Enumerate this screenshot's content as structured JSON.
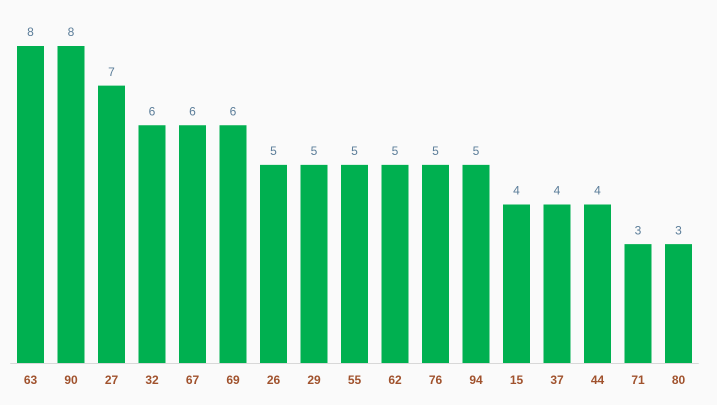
{
  "chart_data": {
    "type": "bar",
    "categories": [
      "63",
      "90",
      "27",
      "32",
      "67",
      "69",
      "26",
      "29",
      "55",
      "62",
      "76",
      "94",
      "15",
      "37",
      "44",
      "71",
      "80"
    ],
    "values": [
      8,
      8,
      7,
      6,
      6,
      6,
      5,
      5,
      5,
      5,
      5,
      5,
      4,
      4,
      4,
      3,
      3
    ],
    "color": "#00b050"
  }
}
